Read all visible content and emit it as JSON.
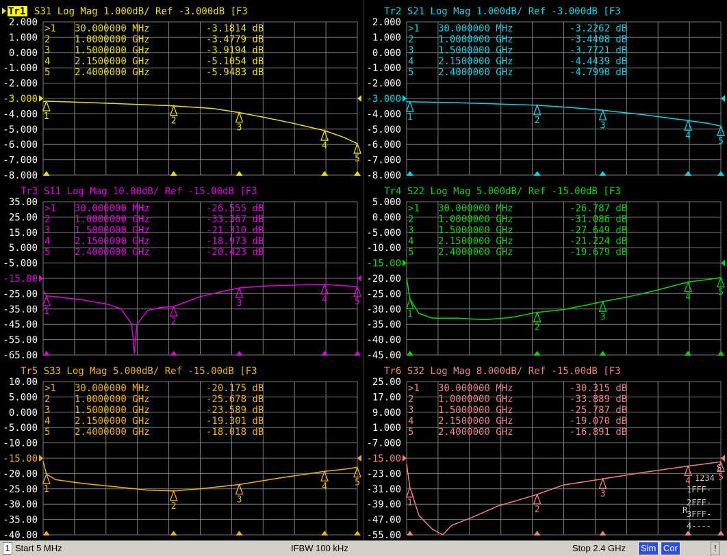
{
  "layout": {
    "cols": 2,
    "rows": 3
  },
  "colors": {
    "background": "#000000",
    "grid": "#7d7d7d",
    "active_trace_tag_bg": "#ffff00"
  },
  "active_trace": "Tr1",
  "status_bar": {
    "channel": "1",
    "start": "Start 5 MHz",
    "ifbw": "IFBW 100 kHz",
    "stop": "Stop 2.4 GHz",
    "badges": [
      "Sim",
      "Cor",
      "!"
    ]
  },
  "chart_data": [
    {
      "type": "line",
      "trace": "Tr1",
      "header": "Tr1 S31 Log Mag 1.000dB/ Ref -3.000dB [F3",
      "color": "#e8e000",
      "y_tick_labels": [
        "2.000",
        "1.000",
        "0.000",
        "-1.000",
        "-2.000",
        "-3.000",
        "-4.000",
        "-5.000",
        "-6.000",
        "-7.000",
        "-8.000"
      ],
      "ref_label": "-3.000",
      "ylim": [
        -8,
        2
      ],
      "xlim_ghz": [
        0.005,
        2.4
      ],
      "series": [
        {
          "x": [
            0.005,
            0.03,
            0.3,
            0.6,
            1.0,
            1.3,
            1.5,
            1.7,
            1.9,
            2.15,
            2.3,
            2.4
          ],
          "y": [
            -3.2,
            -3.18,
            -3.25,
            -3.35,
            -3.48,
            -3.65,
            -3.92,
            -4.25,
            -4.6,
            -5.1,
            -5.55,
            -5.95
          ]
        }
      ],
      "markers": [
        {
          "id": "1",
          "freq": "30.000000 MHz",
          "value": "-3.1814 dB",
          "x": 0.03,
          "y": -3.1814
        },
        {
          "id": "2",
          "freq": "1.0000000 GHz",
          "value": "-3.4779 dB",
          "x": 1.0,
          "y": -3.4779
        },
        {
          "id": "3",
          "freq": "1.5000000 GHz",
          "value": "-3.9194 dB",
          "x": 1.5,
          "y": -3.9194
        },
        {
          "id": "4",
          "freq": "2.1500000 GHz",
          "value": "-5.1054 dB",
          "x": 2.15,
          "y": -5.1054
        },
        {
          "id": "5",
          "freq": "2.4000000 GHz",
          "value": "-5.9483 dB",
          "x": 2.4,
          "y": -5.9483
        }
      ]
    },
    {
      "type": "line",
      "trace": "Tr2",
      "header": "Tr2 S21 Log Mag 1.000dB/ Ref -3.000dB [F3",
      "color": "#00d8e8",
      "y_tick_labels": [
        "2.000",
        "1.000",
        "0.000",
        "-1.000",
        "-2.000",
        "-3.000",
        "-4.000",
        "-5.000",
        "-6.000",
        "-7.000",
        "-8.000"
      ],
      "ref_label": "-3.000",
      "ylim": [
        -8,
        2
      ],
      "xlim_ghz": [
        0.005,
        2.4
      ],
      "series": [
        {
          "x": [
            0.005,
            0.03,
            0.3,
            0.6,
            1.0,
            1.3,
            1.5,
            1.8,
            2.15,
            2.3,
            2.4
          ],
          "y": [
            -3.2,
            -3.22,
            -3.26,
            -3.33,
            -3.44,
            -3.62,
            -3.77,
            -4.05,
            -4.44,
            -4.62,
            -4.8
          ]
        }
      ],
      "markers": [
        {
          "id": "1",
          "freq": "30.000000 MHz",
          "value": "-3.2262 dB",
          "x": 0.03,
          "y": -3.2262
        },
        {
          "id": "2",
          "freq": "1.0000000 GHz",
          "value": "-3.4408 dB",
          "x": 1.0,
          "y": -3.4408
        },
        {
          "id": "3",
          "freq": "1.5000000 GHz",
          "value": "-3.7721 dB",
          "x": 1.5,
          "y": -3.7721
        },
        {
          "id": "4",
          "freq": "2.1500000 GHz",
          "value": "-4.4439 dB",
          "x": 2.15,
          "y": -4.4439
        },
        {
          "id": "5",
          "freq": "2.4000000 GHz",
          "value": "-4.7990 dB",
          "x": 2.4,
          "y": -4.799
        }
      ]
    },
    {
      "type": "line",
      "trace": "Tr3",
      "header": "Tr3 S11 Log Mag 10.00dB/ Ref -15.00dB [F3",
      "color": "#e000e0",
      "y_tick_labels": [
        "35.00",
        "25.00",
        "15.00",
        "5.000",
        "-5.000",
        "-15.00",
        "-25.00",
        "-35.00",
        "-45.00",
        "-55.00",
        "-65.00"
      ],
      "ref_label": "-15.00",
      "ylim": [
        -65,
        35
      ],
      "xlim_ghz": [
        0.005,
        2.4
      ],
      "series": [
        {
          "x": [
            0.005,
            0.03,
            0.15,
            0.3,
            0.5,
            0.6,
            0.68,
            0.7,
            0.72,
            0.8,
            0.9,
            1.0,
            1.2,
            1.4,
            1.5,
            1.7,
            2.0,
            2.15,
            2.4
          ],
          "y": [
            -23,
            -26.5,
            -27.5,
            -29,
            -32,
            -35,
            -45,
            -64,
            -45,
            -36,
            -34,
            -33.4,
            -27,
            -23,
            -21.3,
            -20,
            -19.2,
            -19,
            -20.4
          ]
        }
      ],
      "markers": [
        {
          "id": "1",
          "freq": "30.000000 MHz",
          "value": "-26.555 dB",
          "x": 0.03,
          "y": -26.555
        },
        {
          "id": "2",
          "freq": "1.0000000 GHz",
          "value": "-33.367 dB",
          "x": 1.0,
          "y": -33.367
        },
        {
          "id": "3",
          "freq": "1.5000000 GHz",
          "value": "-21.310 dB",
          "x": 1.5,
          "y": -21.31
        },
        {
          "id": "4",
          "freq": "2.1500000 GHz",
          "value": "-18.973 dB",
          "x": 2.15,
          "y": -18.973
        },
        {
          "id": "5",
          "freq": "2.4000000 GHz",
          "value": "-20.423 dB",
          "x": 2.4,
          "y": -20.423
        }
      ]
    },
    {
      "type": "line",
      "trace": "Tr4",
      "header": "Tr4 S22 Log Mag 5.000dB/ Ref -15.00dB [F3",
      "color": "#00d800",
      "y_tick_labels": [
        "5.000",
        "0.000",
        "-5.000",
        "-10.00",
        "-15.00",
        "-20.00",
        "-25.00",
        "-30.00",
        "-35.00",
        "-40.00",
        "-45.00"
      ],
      "ref_label": "-15.00",
      "ylim": [
        -45,
        5
      ],
      "xlim_ghz": [
        0.005,
        2.4
      ],
      "series": [
        {
          "x": [
            0.005,
            0.03,
            0.1,
            0.2,
            0.4,
            0.6,
            0.8,
            1.0,
            1.2,
            1.4,
            1.5,
            1.7,
            1.9,
            2.15,
            2.3,
            2.4
          ],
          "y": [
            -20,
            -26.8,
            -31.5,
            -33,
            -33,
            -33.5,
            -32.8,
            -31.1,
            -30.2,
            -28.5,
            -27.6,
            -26,
            -24,
            -21.2,
            -20.4,
            -19.7
          ]
        }
      ],
      "markers": [
        {
          "id": "1",
          "freq": "30.000000 MHz",
          "value": "-26.787 dB",
          "x": 0.03,
          "y": -26.787
        },
        {
          "id": "2",
          "freq": "1.0000000 GHz",
          "value": "-31.086 dB",
          "x": 1.0,
          "y": -31.086
        },
        {
          "id": "3",
          "freq": "1.5000000 GHz",
          "value": "-27.649 dB",
          "x": 1.5,
          "y": -27.649
        },
        {
          "id": "4",
          "freq": "2.1500000 GHz",
          "value": "-21.224 dB",
          "x": 2.15,
          "y": -21.224
        },
        {
          "id": "5",
          "freq": "2.4000000 GHz",
          "value": "-19.679 dB",
          "x": 2.4,
          "y": -19.679
        }
      ]
    },
    {
      "type": "line",
      "trace": "Tr5",
      "header": "Tr5 S33 Log Mag 5.000dB/ Ref -15.00dB [F3",
      "color": "#f0b400",
      "y_tick_labels": [
        "10.00",
        "5.000",
        "0.000",
        "-5.000",
        "-10.00",
        "-15.00",
        "-20.00",
        "-25.00",
        "-30.00",
        "-35.00",
        "-40.00"
      ],
      "ref_label": "-15.00",
      "ylim": [
        -40,
        10
      ],
      "xlim_ghz": [
        0.005,
        2.4
      ],
      "series": [
        {
          "x": [
            0.005,
            0.03,
            0.1,
            0.3,
            0.6,
            0.8,
            1.0,
            1.2,
            1.5,
            1.8,
            2.15,
            2.3,
            2.4
          ],
          "y": [
            -16,
            -20.2,
            -22,
            -23.2,
            -24.5,
            -25.4,
            -25.7,
            -25,
            -23.6,
            -21.5,
            -19.3,
            -18.6,
            -18
          ]
        }
      ],
      "markers": [
        {
          "id": "1",
          "freq": "30.000000 MHz",
          "value": "-20.175 dB",
          "x": 0.03,
          "y": -20.175
        },
        {
          "id": "2",
          "freq": "1.0000000 GHz",
          "value": "-25.678 dB",
          "x": 1.0,
          "y": -25.678
        },
        {
          "id": "3",
          "freq": "1.5000000 GHz",
          "value": "-23.589 dB",
          "x": 1.5,
          "y": -23.589
        },
        {
          "id": "4",
          "freq": "2.1500000 GHz",
          "value": "-19.301 dB",
          "x": 2.15,
          "y": -19.301
        },
        {
          "id": "5",
          "freq": "2.4000000 GHz",
          "value": "-18.018 dB",
          "x": 2.4,
          "y": -18.018
        }
      ]
    },
    {
      "type": "line",
      "trace": "Tr6",
      "header": "Tr6 S32 Log Mag 8.000dB/ Ref -15.00dB [F3",
      "color": "#f08080",
      "y_tick_labels": [
        "25.00",
        "17.00",
        "9.000",
        "1.000",
        "-7.000",
        "-15.00",
        "-23.00",
        "-31.00",
        "-39.00",
        "-47.00",
        "-55.00"
      ],
      "ref_label": "-15.00",
      "ylim": [
        -55,
        25
      ],
      "xlim_ghz": [
        0.005,
        2.4
      ],
      "series": [
        {
          "x": [
            0.005,
            0.03,
            0.1,
            0.2,
            0.28,
            0.35,
            0.5,
            0.7,
            0.9,
            1.0,
            1.2,
            1.5,
            1.8,
            2.15,
            2.4
          ],
          "y": [
            -18,
            -30.3,
            -45,
            -52,
            -55,
            -50,
            -46,
            -40,
            -36,
            -33.9,
            -29,
            -25.8,
            -22.5,
            -19.1,
            -16.9
          ]
        }
      ],
      "markers": [
        {
          "id": "1",
          "freq": "30.000000 MHz",
          "value": "-30.315 dB",
          "x": 0.03,
          "y": -30.315
        },
        {
          "id": "2",
          "freq": "1.0000000 GHz",
          "value": "-33.889 dB",
          "x": 1.0,
          "y": -33.889
        },
        {
          "id": "3",
          "freq": "1.5000000 GHz",
          "value": "-25.787 dB",
          "x": 1.5,
          "y": -25.787
        },
        {
          "id": "4",
          "freq": "2.1500000 GHz",
          "value": "-19.070 dB",
          "x": 2.15,
          "y": -19.07
        },
        {
          "id": "5",
          "freq": "2.4000000 GHz",
          "value": "-16.891 dB",
          "x": 2.4,
          "y": -16.891
        }
      ],
      "side_labels": [
        "S",
        "1234",
        "1FFF-",
        "2FFF-",
        "R",
        "3FFF-",
        "4----"
      ]
    }
  ]
}
